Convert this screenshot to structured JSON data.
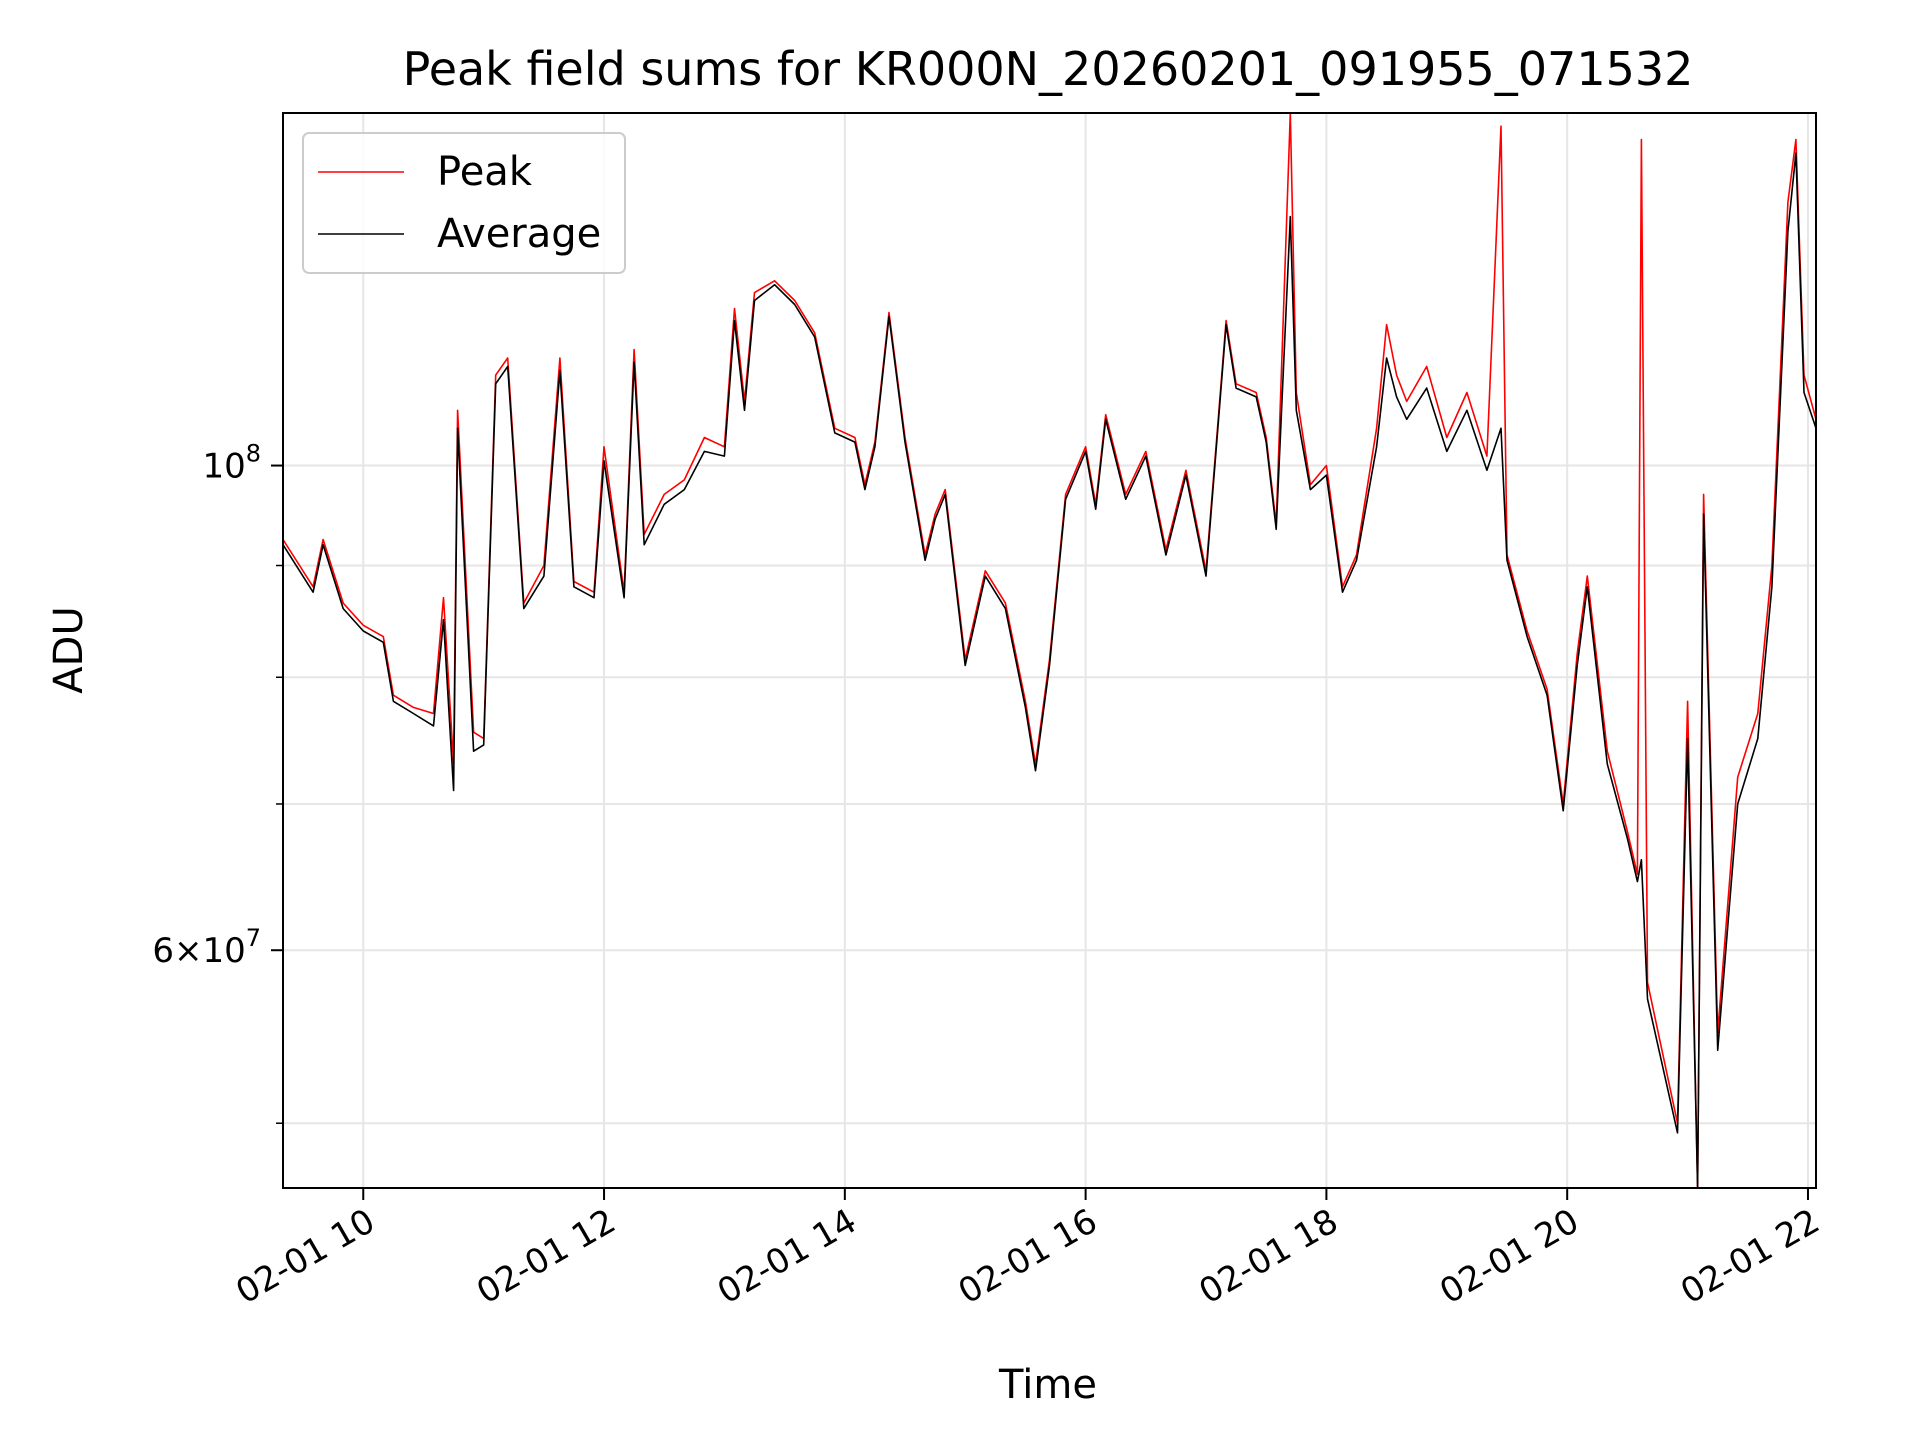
{
  "chart_data": {
    "type": "line",
    "title": "Peak field sums for KR000N_20260201_091955_071532",
    "xlabel": "Time",
    "ylabel": "ADU",
    "x_scale": "time",
    "y_scale": "log",
    "xlim": [
      "02-01 09:20",
      "02-01 22:04"
    ],
    "ylim": [
      46700000,
      145000000
    ],
    "grid": true,
    "legend_position": "upper-left",
    "x_ticks": [
      {
        "value": "02-01 10:00",
        "label": "02-01 10"
      },
      {
        "value": "02-01 12:00",
        "label": "02-01 12"
      },
      {
        "value": "02-01 14:00",
        "label": "02-01 14"
      },
      {
        "value": "02-01 16:00",
        "label": "02-01 16"
      },
      {
        "value": "02-01 18:00",
        "label": "02-01 18"
      },
      {
        "value": "02-01 20:00",
        "label": "02-01 20"
      },
      {
        "value": "02-01 22:00",
        "label": "02-01 22"
      }
    ],
    "y_ticks_major": [
      {
        "value": 100000000,
        "base": "10",
        "exp": "8"
      },
      {
        "value": 60000000,
        "mantissa": "6",
        "base": "10",
        "exp": "7"
      }
    ],
    "y_ticks_minor": [
      50000000,
      70000000,
      80000000,
      90000000
    ],
    "series": [
      {
        "name": "Peak",
        "color": "#ff0000",
        "points": [
          [
            "02-01 09:20",
            92500000
          ],
          [
            "02-01 09:35",
            88000000
          ],
          [
            "02-01 09:40",
            92500000
          ],
          [
            "02-01 09:50",
            86500000
          ],
          [
            "02-01 10:00",
            84500000
          ],
          [
            "02-01 10:10",
            83500000
          ],
          [
            "02-01 10:15",
            78500000
          ],
          [
            "02-01 10:25",
            77500000
          ],
          [
            "02-01 10:35",
            77000000
          ],
          [
            "02-01 10:40",
            87000000
          ],
          [
            "02-01 10:45",
            73000000
          ],
          [
            "02-01 10:47",
            106000000
          ],
          [
            "02-01 10:55",
            75500000
          ],
          [
            "02-01 11:00",
            75000000
          ],
          [
            "02-01 11:06",
            110000000
          ],
          [
            "02-01 11:12",
            112000000
          ],
          [
            "02-01 11:20",
            86500000
          ],
          [
            "02-01 11:30",
            90000000
          ],
          [
            "02-01 11:38",
            112000000
          ],
          [
            "02-01 11:45",
            88500000
          ],
          [
            "02-01 11:55",
            87500000
          ],
          [
            "02-01 12:00",
            102000000
          ],
          [
            "02-01 12:10",
            87500000
          ],
          [
            "02-01 12:15",
            113000000
          ],
          [
            "02-01 12:20",
            93000000
          ],
          [
            "02-01 12:30",
            97000000
          ],
          [
            "02-01 12:40",
            98500000
          ],
          [
            "02-01 12:50",
            103000000
          ],
          [
            "02-01 13:00",
            102000000
          ],
          [
            "02-01 13:05",
            118000000
          ],
          [
            "02-01 13:10",
            107000000
          ],
          [
            "02-01 13:15",
            120000000
          ],
          [
            "02-01 13:25",
            121500000
          ],
          [
            "02-01 13:35",
            119000000
          ],
          [
            "02-01 13:45",
            115000000
          ],
          [
            "02-01 13:55",
            104000000
          ],
          [
            "02-01 14:05",
            103000000
          ],
          [
            "02-01 14:10",
            98000000
          ],
          [
            "02-01 14:15",
            102500000
          ],
          [
            "02-01 14:22",
            117500000
          ],
          [
            "02-01 14:30",
            103000000
          ],
          [
            "02-01 14:40",
            91000000
          ],
          [
            "02-01 14:45",
            95000000
          ],
          [
            "02-01 14:50",
            97500000
          ],
          [
            "02-01 15:00",
            81500000
          ],
          [
            "02-01 15:10",
            89500000
          ],
          [
            "02-01 15:20",
            86500000
          ],
          [
            "02-01 15:30",
            78000000
          ],
          [
            "02-01 15:35",
            73000000
          ],
          [
            "02-01 15:42",
            81500000
          ],
          [
            "02-01 15:50",
            97000000
          ],
          [
            "02-01 16:00",
            102000000
          ],
          [
            "02-01 16:05",
            96000000
          ],
          [
            "02-01 16:10",
            105500000
          ],
          [
            "02-01 16:20",
            97000000
          ],
          [
            "02-01 16:30",
            101500000
          ],
          [
            "02-01 16:40",
            91500000
          ],
          [
            "02-01 16:50",
            99500000
          ],
          [
            "02-01 17:00",
            89500000
          ],
          [
            "02-01 17:05",
            102000000
          ],
          [
            "02-01 17:10",
            116500000
          ],
          [
            "02-01 17:15",
            109000000
          ],
          [
            "02-01 17:25",
            108000000
          ],
          [
            "02-01 17:30",
            103000000
          ],
          [
            "02-01 17:35",
            94000000
          ],
          [
            "02-01 17:42",
            145000000
          ],
          [
            "02-01 17:45",
            108000000
          ],
          [
            "02-01 17:52",
            98000000
          ],
          [
            "02-01 18:00",
            100000000
          ],
          [
            "02-01 18:08",
            88000000
          ],
          [
            "02-01 18:15",
            91000000
          ],
          [
            "02-01 18:25",
            104000000
          ],
          [
            "02-01 18:30",
            116000000
          ],
          [
            "02-01 18:35",
            110000000
          ],
          [
            "02-01 18:40",
            107000000
          ],
          [
            "02-01 18:50",
            111000000
          ],
          [
            "02-01 19:00",
            103000000
          ],
          [
            "02-01 19:10",
            108000000
          ],
          [
            "02-01 19:20",
            101000000
          ],
          [
            "02-01 19:27",
            143000000
          ],
          [
            "02-01 19:30",
            91000000
          ],
          [
            "02-01 19:40",
            84000000
          ],
          [
            "02-01 19:50",
            79000000
          ],
          [
            "02-01 19:58",
            70000000
          ],
          [
            "02-01 20:05",
            82000000
          ],
          [
            "02-01 20:10",
            89000000
          ],
          [
            "02-01 20:20",
            74000000
          ],
          [
            "02-01 20:30",
            68000000
          ],
          [
            "02-01 20:35",
            65000000
          ],
          [
            "02-01 20:37",
            141000000
          ],
          [
            "02-01 20:40",
            58000000
          ],
          [
            "02-01 20:55",
            50000000
          ],
          [
            "02-01 21:00",
            78000000
          ],
          [
            "02-01 21:05",
            46700000
          ],
          [
            "02-01 21:08",
            97000000
          ],
          [
            "02-01 21:15",
            55000000
          ],
          [
            "02-01 21:25",
            72000000
          ],
          [
            "02-01 21:35",
            77000000
          ],
          [
            "02-01 21:42",
            90000000
          ],
          [
            "02-01 21:50",
            132000000
          ],
          [
            "02-01 21:54",
            141000000
          ],
          [
            "02-01 21:58",
            110000000
          ],
          [
            "02-01 22:04",
            105000000
          ]
        ]
      },
      {
        "name": "Average",
        "color": "#000000",
        "points": [
          [
            "02-01 09:20",
            92000000
          ],
          [
            "02-01 09:35",
            87500000
          ],
          [
            "02-01 09:40",
            92000000
          ],
          [
            "02-01 09:50",
            86000000
          ],
          [
            "02-01 10:00",
            84000000
          ],
          [
            "02-01 10:10",
            83000000
          ],
          [
            "02-01 10:15",
            78000000
          ],
          [
            "02-01 10:25",
            77000000
          ],
          [
            "02-01 10:35",
            76000000
          ],
          [
            "02-01 10:40",
            85000000
          ],
          [
            "02-01 10:45",
            71000000
          ],
          [
            "02-01 10:47",
            104000000
          ],
          [
            "02-01 10:55",
            74000000
          ],
          [
            "02-01 11:00",
            74500000
          ],
          [
            "02-01 11:06",
            109000000
          ],
          [
            "02-01 11:12",
            111000000
          ],
          [
            "02-01 11:20",
            86000000
          ],
          [
            "02-01 11:30",
            89000000
          ],
          [
            "02-01 11:38",
            110500000
          ],
          [
            "02-01 11:45",
            88000000
          ],
          [
            "02-01 11:55",
            87000000
          ],
          [
            "02-01 12:00",
            100500000
          ],
          [
            "02-01 12:10",
            87000000
          ],
          [
            "02-01 12:15",
            111500000
          ],
          [
            "02-01 12:20",
            92000000
          ],
          [
            "02-01 12:30",
            96000000
          ],
          [
            "02-01 12:40",
            97500000
          ],
          [
            "02-01 12:50",
            101500000
          ],
          [
            "02-01 13:00",
            101000000
          ],
          [
            "02-01 13:05",
            116500000
          ],
          [
            "02-01 13:10",
            106000000
          ],
          [
            "02-01 13:15",
            119000000
          ],
          [
            "02-01 13:25",
            121000000
          ],
          [
            "02-01 13:35",
            118500000
          ],
          [
            "02-01 13:45",
            114500000
          ],
          [
            "02-01 13:55",
            103500000
          ],
          [
            "02-01 14:05",
            102500000
          ],
          [
            "02-01 14:10",
            97500000
          ],
          [
            "02-01 14:15",
            102000000
          ],
          [
            "02-01 14:22",
            117000000
          ],
          [
            "02-01 14:30",
            102500000
          ],
          [
            "02-01 14:40",
            90500000
          ],
          [
            "02-01 14:45",
            94500000
          ],
          [
            "02-01 14:50",
            97000000
          ],
          [
            "02-01 15:00",
            81000000
          ],
          [
            "02-01 15:10",
            89000000
          ],
          [
            "02-01 15:20",
            86000000
          ],
          [
            "02-01 15:30",
            77500000
          ],
          [
            "02-01 15:35",
            72500000
          ],
          [
            "02-01 15:42",
            81000000
          ],
          [
            "02-01 15:50",
            96500000
          ],
          [
            "02-01 16:00",
            101500000
          ],
          [
            "02-01 16:05",
            95500000
          ],
          [
            "02-01 16:10",
            105000000
          ],
          [
            "02-01 16:20",
            96500000
          ],
          [
            "02-01 16:30",
            101000000
          ],
          [
            "02-01 16:40",
            91000000
          ],
          [
            "02-01 16:50",
            99000000
          ],
          [
            "02-01 17:00",
            89000000
          ],
          [
            "02-01 17:05",
            101500000
          ],
          [
            "02-01 17:10",
            116000000
          ],
          [
            "02-01 17:15",
            108500000
          ],
          [
            "02-01 17:25",
            107500000
          ],
          [
            "02-01 17:30",
            102500000
          ],
          [
            "02-01 17:35",
            93500000
          ],
          [
            "02-01 17:42",
            130000000
          ],
          [
            "02-01 17:45",
            106000000
          ],
          [
            "02-01 17:52",
            97500000
          ],
          [
            "02-01 18:00",
            99000000
          ],
          [
            "02-01 18:08",
            87500000
          ],
          [
            "02-01 18:15",
            90500000
          ],
          [
            "02-01 18:25",
            102000000
          ],
          [
            "02-01 18:30",
            112000000
          ],
          [
            "02-01 18:35",
            107500000
          ],
          [
            "02-01 18:40",
            105000000
          ],
          [
            "02-01 18:50",
            108500000
          ],
          [
            "02-01 19:00",
            101500000
          ],
          [
            "02-01 19:10",
            106000000
          ],
          [
            "02-01 19:20",
            99500000
          ],
          [
            "02-01 19:27",
            104000000
          ],
          [
            "02-01 19:30",
            90500000
          ],
          [
            "02-01 19:40",
            83500000
          ],
          [
            "02-01 19:50",
            78500000
          ],
          [
            "02-01 19:58",
            69500000
          ],
          [
            "02-01 20:05",
            81000000
          ],
          [
            "02-01 20:10",
            88000000
          ],
          [
            "02-01 20:20",
            73000000
          ],
          [
            "02-01 20:30",
            67500000
          ],
          [
            "02-01 20:35",
            64500000
          ],
          [
            "02-01 20:37",
            66000000
          ],
          [
            "02-01 20:40",
            57000000
          ],
          [
            "02-01 20:55",
            49500000
          ],
          [
            "02-01 21:00",
            75000000
          ],
          [
            "02-01 21:05",
            46700000
          ],
          [
            "02-01 21:08",
            95000000
          ],
          [
            "02-01 21:15",
            54000000
          ],
          [
            "02-01 21:25",
            70000000
          ],
          [
            "02-01 21:35",
            75000000
          ],
          [
            "02-01 21:42",
            88000000
          ],
          [
            "02-01 21:50",
            128000000
          ],
          [
            "02-01 21:54",
            139000000
          ],
          [
            "02-01 21:58",
            108000000
          ],
          [
            "02-01 22:04",
            104000000
          ]
        ]
      }
    ]
  }
}
